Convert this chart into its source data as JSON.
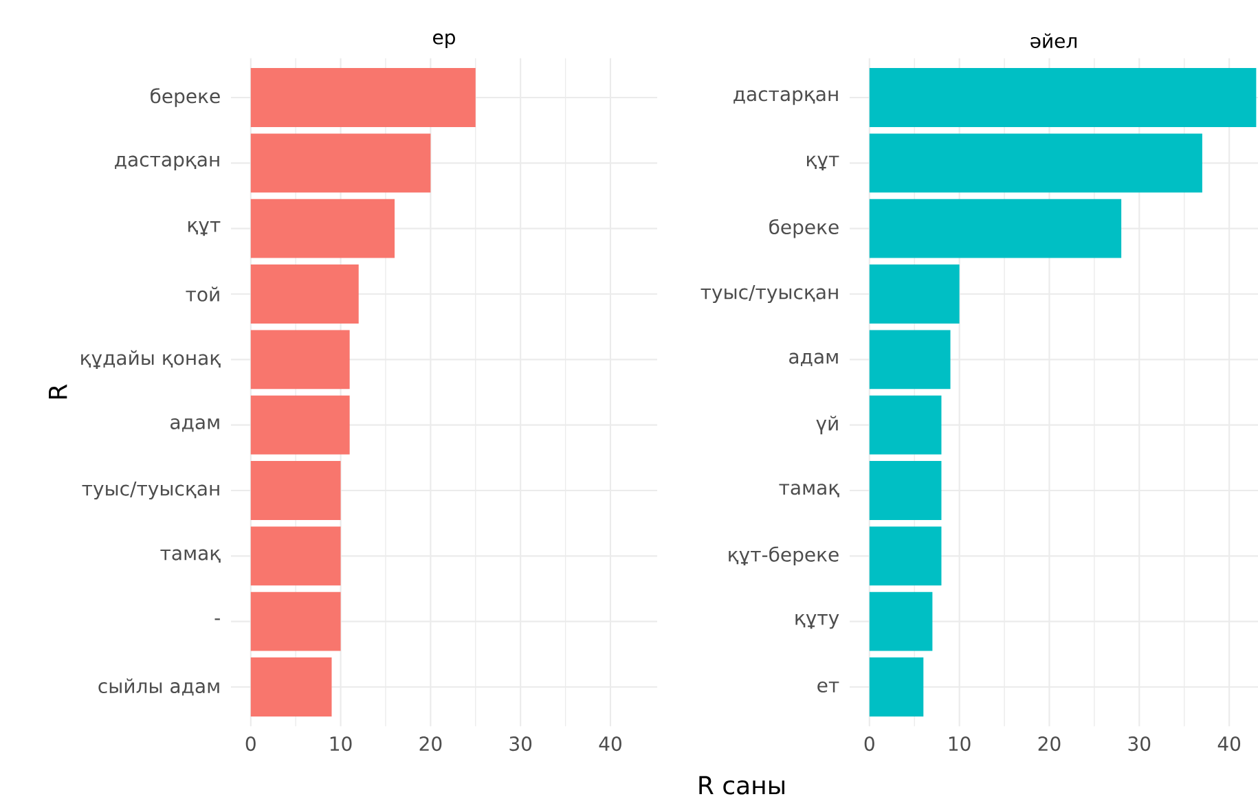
{
  "chart_data": [
    {
      "type": "bar",
      "orientation": "horizontal",
      "title": "ер",
      "ylabel": "R",
      "xlabel": "R саны",
      "categories": [
        "береке",
        "дастарқан",
        "құт",
        "той",
        "құдайы қонақ",
        "адам",
        "туыс/туысқан",
        "тамақ",
        "-",
        "сыйлы адам"
      ],
      "values": [
        25,
        20,
        16,
        12,
        11,
        11,
        10,
        10,
        10,
        9
      ],
      "color": "#f8766d",
      "xlim": [
        -2.2,
        45.2
      ],
      "xticks": [
        0,
        10,
        20,
        30,
        40
      ],
      "grid": true
    },
    {
      "type": "bar",
      "orientation": "horizontal",
      "title": "әйел",
      "categories": [
        "дастарқан",
        "құт",
        "береке",
        "туыс/туысқан",
        "адам",
        "үй",
        "тамақ",
        "құт-береке",
        "құту",
        "ет"
      ],
      "values": [
        43,
        37,
        28,
        10,
        9,
        8,
        8,
        8,
        7,
        6
      ],
      "color": "#00bfc4",
      "xlim": [
        -2.2,
        43.2
      ],
      "xticks": [
        0,
        10,
        20,
        30,
        40
      ],
      "grid": true
    }
  ]
}
